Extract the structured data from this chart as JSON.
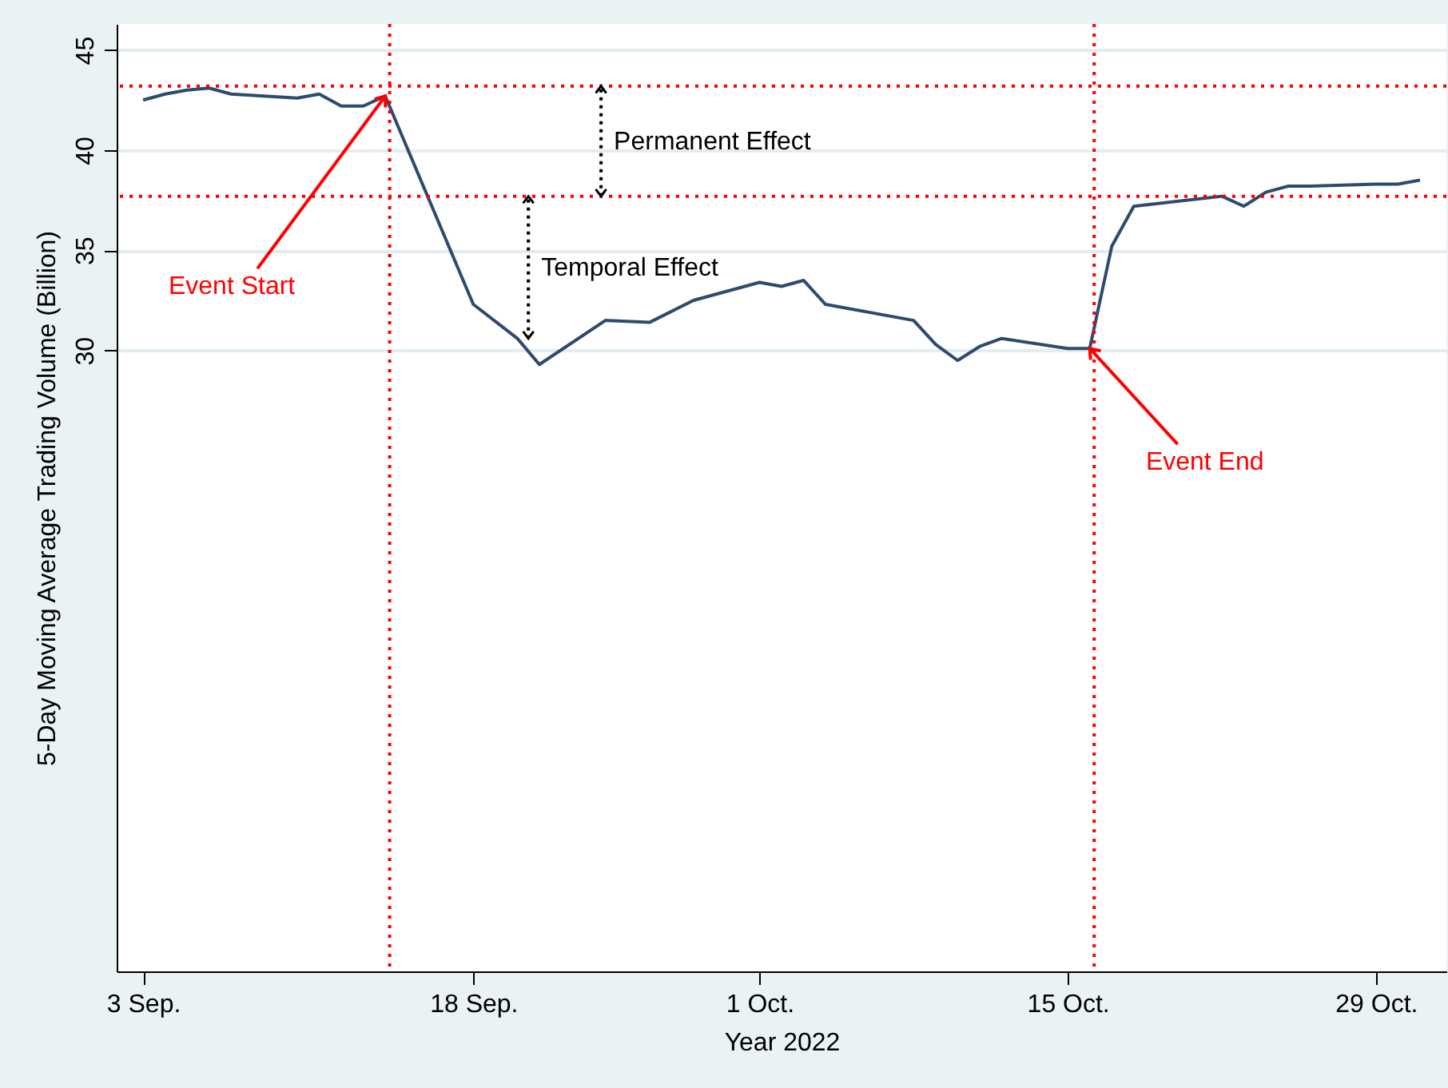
{
  "chart_data": {
    "type": "line",
    "xlabel": "Year 2022",
    "ylabel": "5-Day Moving Average Trading Volume (Billion)",
    "x": [
      "2022-09-03",
      "2022-09-04",
      "2022-09-05",
      "2022-09-06",
      "2022-09-07",
      "2022-09-10",
      "2022-09-11",
      "2022-09-12",
      "2022-09-13",
      "2022-09-14",
      "2022-09-18",
      "2022-09-20",
      "2022-09-21",
      "2022-09-24",
      "2022-09-26",
      "2022-09-28",
      "2022-10-01",
      "2022-10-02",
      "2022-10-03",
      "2022-10-04",
      "2022-10-08",
      "2022-10-09",
      "2022-10-10",
      "2022-10-11",
      "2022-10-12",
      "2022-10-15",
      "2022-10-16",
      "2022-10-17",
      "2022-10-18",
      "2022-10-22",
      "2022-10-23",
      "2022-10-24",
      "2022-10-25",
      "2022-10-26",
      "2022-10-29",
      "2022-10-30",
      "2022-10-31"
    ],
    "series": [
      {
        "color": "#2d4b6e",
        "values": [
          42.5,
          42.8,
          43.0,
          43.1,
          42.8,
          42.6,
          42.8,
          42.2,
          42.2,
          42.7,
          32.3,
          30.6,
          29.3,
          31.5,
          31.4,
          32.5,
          33.4,
          33.2,
          33.5,
          32.3,
          31.5,
          30.3,
          29.5,
          30.2,
          30.6,
          30.1,
          30.1,
          35.2,
          37.2,
          37.7,
          37.2,
          37.9,
          38.2,
          38.2,
          38.3,
          38.3,
          38.5
        ]
      }
    ],
    "xlim": [
      "2022-09-01T19:12",
      "2022-11-01T04:48"
    ],
    "ylim": [
      -1,
      46.3
    ],
    "xticks": [
      {
        "value": "2022-09-03",
        "label": "3 Sep."
      },
      {
        "value": "2022-09-18",
        "label": "18 Sep."
      },
      {
        "value": "2022-10-01",
        "label": "1 Oct."
      },
      {
        "value": "2022-10-15",
        "label": "15 Oct."
      },
      {
        "value": "2022-10-29",
        "label": "29 Oct."
      }
    ],
    "yticks": [
      30,
      35,
      40,
      45
    ],
    "grid": "y",
    "line_style": "solid",
    "ref_lines": [
      {
        "axis": "x",
        "value": "2022-09-14T04:48",
        "color": "#ff0000",
        "line_style": "dotted"
      },
      {
        "axis": "x",
        "value": "2022-10-16T04:48",
        "color": "#ff0000",
        "line_style": "dotted"
      },
      {
        "axis": "y",
        "value": 43.2,
        "color": "#ff0000",
        "line_style": "dotted"
      },
      {
        "axis": "y",
        "value": 37.7,
        "color": "#ff0000",
        "line_style": "dotted"
      }
    ],
    "annotations": [
      {
        "text": "Event Start",
        "x": "2022-09-14",
        "y": 42.7
      },
      {
        "text": "Event End",
        "x": "2022-10-16",
        "y": 30.1
      },
      {
        "text": "Permanent Effect",
        "x": "2022-09-23T19:12",
        "y": 37.7
      },
      {
        "text": "Temporal Effect",
        "x": "2022-09-20T12:00",
        "y": 30.6
      }
    ]
  }
}
